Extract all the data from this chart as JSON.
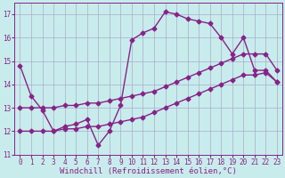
{
  "bg_color": "#c8ecec",
  "grid_color": "#aaaacc",
  "line_color": "#882288",
  "marker": "D",
  "markersize": 2.5,
  "linewidth": 1.0,
  "xlabel": "Windchill (Refroidissement éolien,°C)",
  "xlabel_fontsize": 6.5,
  "tick_fontsize": 5.5,
  "ylim": [
    11,
    17.5
  ],
  "xlim": [
    -0.5,
    23.5
  ],
  "yticks": [
    11,
    12,
    13,
    14,
    15,
    16,
    17
  ],
  "xticks": [
    0,
    1,
    2,
    3,
    4,
    5,
    6,
    7,
    8,
    9,
    10,
    11,
    12,
    13,
    14,
    15,
    16,
    17,
    18,
    19,
    20,
    21,
    22,
    23
  ],
  "series1_x": [
    0,
    1,
    2,
    3,
    4,
    5,
    6,
    7,
    8,
    9,
    10,
    11,
    12,
    13,
    14,
    15,
    16,
    17,
    18,
    19,
    20,
    21,
    22,
    23
  ],
  "series1_y": [
    14.8,
    13.5,
    12.9,
    12.0,
    12.2,
    12.3,
    12.5,
    11.4,
    12.0,
    13.1,
    15.9,
    16.2,
    16.4,
    17.1,
    17.0,
    16.8,
    16.7,
    16.6,
    16.0,
    15.3,
    16.0,
    14.6,
    14.6,
    14.1
  ],
  "series2_x": [
    0,
    1,
    2,
    3,
    4,
    5,
    6,
    7,
    8,
    9,
    10,
    11,
    12,
    13,
    14,
    15,
    16,
    17,
    18,
    19,
    20,
    21,
    22,
    23
  ],
  "series2_y": [
    13.0,
    13.0,
    13.0,
    13.0,
    13.1,
    13.1,
    13.2,
    13.2,
    13.3,
    13.4,
    13.5,
    13.6,
    13.7,
    13.9,
    14.1,
    14.3,
    14.5,
    14.7,
    14.9,
    15.1,
    15.3,
    15.3,
    15.3,
    14.6
  ],
  "series3_x": [
    0,
    1,
    2,
    3,
    4,
    5,
    6,
    7,
    8,
    9,
    10,
    11,
    12,
    13,
    14,
    15,
    16,
    17,
    18,
    19,
    20,
    21,
    22,
    23
  ],
  "series3_y": [
    12.0,
    12.0,
    12.0,
    12.0,
    12.1,
    12.1,
    12.2,
    12.2,
    12.3,
    12.4,
    12.5,
    12.6,
    12.8,
    13.0,
    13.2,
    13.4,
    13.6,
    13.8,
    14.0,
    14.2,
    14.4,
    14.4,
    14.5,
    14.1
  ]
}
